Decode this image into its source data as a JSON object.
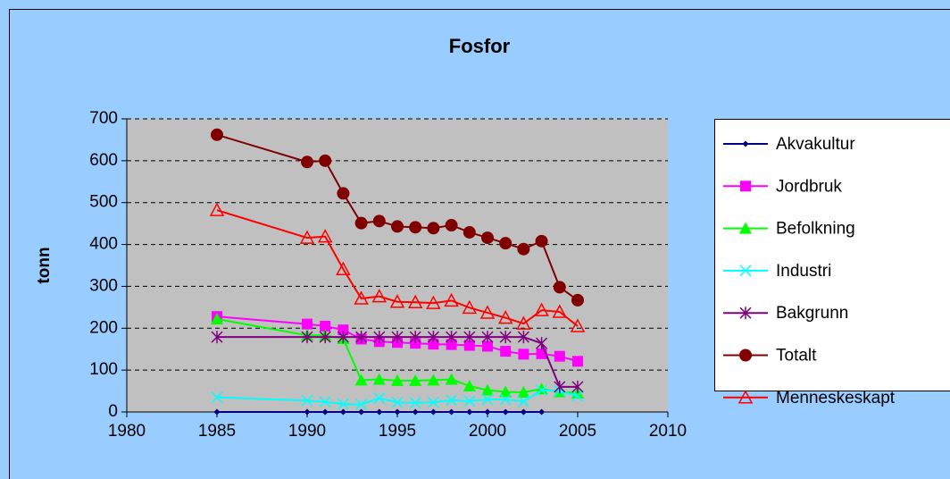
{
  "chart_data": {
    "type": "line",
    "title": "Fosfor",
    "ylabel": "tonn",
    "x": [
      1985,
      1990,
      1991,
      1992,
      1993,
      1994,
      1995,
      1996,
      1997,
      1998,
      1999,
      2000,
      2001,
      2002,
      2003,
      2004,
      2005
    ],
    "xlim": [
      1980,
      2010
    ],
    "xticks": [
      1980,
      1985,
      1990,
      1995,
      2000,
      2005,
      2010
    ],
    "ylim": [
      0,
      700
    ],
    "yticks": [
      0,
      100,
      200,
      300,
      400,
      500,
      600,
      700
    ],
    "grid": true,
    "legend": "right",
    "series": [
      {
        "name": "Akvakultur",
        "color": "#000080",
        "marker": "diamond",
        "values": [
          0,
          0,
          0,
          0,
          0,
          0,
          0,
          0,
          0,
          0,
          0,
          0,
          0,
          0,
          0,
          null,
          null
        ]
      },
      {
        "name": "Jordbruk",
        "color": "#ff00ff",
        "marker": "square",
        "values": [
          228,
          210,
          205,
          196,
          174,
          168,
          166,
          164,
          162,
          161,
          159,
          157,
          145,
          138,
          139,
          133,
          121
        ]
      },
      {
        "name": "Befolkning",
        "color": "#00ff00",
        "marker": "triangle",
        "values": [
          222,
          183,
          183,
          175,
          76,
          78,
          75,
          75,
          76,
          78,
          62,
          52,
          48,
          47,
          55,
          48,
          45
        ]
      },
      {
        "name": "Industri",
        "color": "#00ffff",
        "marker": "x",
        "values": [
          35,
          27,
          24,
          19,
          18,
          33,
          23,
          22,
          23,
          28,
          26,
          30,
          30,
          25,
          52,
          50,
          38
        ]
      },
      {
        "name": "Bakgrunn",
        "color": "#800080",
        "marker": "star",
        "values": [
          179,
          179,
          179,
          179,
          179,
          179,
          179,
          179,
          179,
          179,
          179,
          179,
          179,
          179,
          164,
          60,
          60
        ]
      },
      {
        "name": "Totalt",
        "color": "#800000",
        "marker": "circle",
        "values": [
          662,
          597,
          600,
          522,
          451,
          456,
          443,
          441,
          439,
          446,
          429,
          416,
          403,
          389,
          408,
          298,
          267
        ]
      },
      {
        "name": "Menneskeskapt",
        "color": "#ff0000",
        "marker": "open-triangle",
        "values": [
          482,
          416,
          419,
          341,
          271,
          276,
          263,
          262,
          260,
          266,
          249,
          237,
          225,
          211,
          243,
          239,
          205
        ]
      }
    ]
  }
}
